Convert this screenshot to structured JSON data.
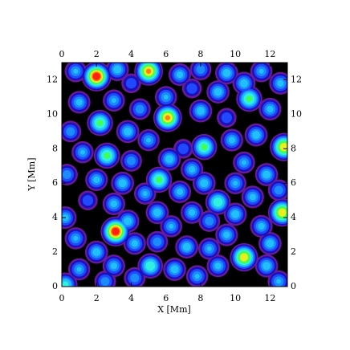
{
  "chart_data": {
    "type": "heatmap",
    "xlabel": "X [Mm]",
    "ylabel": "Y [Mm]",
    "xlim": [
      0,
      13
    ],
    "ylim": [
      0,
      13
    ],
    "xticks": [
      0,
      2,
      4,
      6,
      8,
      10,
      12
    ],
    "yticks": [
      0,
      2,
      4,
      6,
      8,
      10,
      12
    ],
    "x": [
      0.8,
      3.2,
      4,
      6.8,
      8,
      9.5,
      11.5,
      12.6,
      7.5,
      9,
      3,
      1,
      4.5,
      8,
      9.5,
      12,
      0.5,
      3.8,
      5,
      7,
      9.8,
      11.2,
      1.2,
      4,
      6.2,
      7.5,
      10.5,
      11.8,
      0.3,
      2,
      3.5,
      4.8,
      6.8,
      8.2,
      10,
      12.5,
      1.5,
      3,
      5.5,
      6.3,
      7.5,
      8.5,
      10,
      11.5,
      0.8,
      2,
      4.2,
      5.5,
      7.2,
      8.5,
      9.5,
      12,
      1,
      3,
      4.2,
      6.5,
      7.8,
      9,
      11.8,
      12.5,
      2.5,
      0.2,
      6,
      10.5,
      11,
      3.8,
      2,
      5,
      10.8,
      2.2,
      6.1,
      12.8,
      2.6,
      8.2,
      5.6,
      9,
      12.7,
      3.1,
      10.5,
      5.1,
      0.2
    ],
    "y": [
      12.5,
      12.6,
      11.8,
      12.3,
      12.6,
      12.4,
      12.5,
      11.8,
      11.5,
      11.3,
      10.8,
      10.7,
      10.3,
      10.2,
      9.8,
      10.3,
      9,
      9,
      8.5,
      8,
      8.5,
      8.8,
      7.8,
      7.3,
      7.4,
      6.8,
      7.2,
      6.5,
      6.5,
      6.2,
      6,
      5.4,
      5.5,
      6,
      6,
      5.6,
      5,
      4.8,
      4.3,
      3.5,
      4.3,
      3.8,
      4.2,
      3.5,
      2.8,
      2,
      2.5,
      2.6,
      2.3,
      2.2,
      3,
      2.5,
      1,
      1.2,
      0.5,
      1,
      0.6,
      1.2,
      1.2,
      0.3,
      0.3,
      4,
      11,
      11.8,
      5.2,
      3.8,
      12.2,
      12.5,
      10.9,
      9.5,
      9.8,
      8.1,
      7.6,
      8.1,
      6.2,
      4.9,
      4.3,
      3.2,
      1.7,
      1.2,
      0.1
    ],
    "values": [
      0.38,
      0.42,
      0.3,
      0.4,
      0.36,
      0.42,
      0.38,
      0.4,
      0.3,
      0.42,
      0.38,
      0.4,
      0.36,
      0.42,
      0.3,
      0.4,
      0.36,
      0.42,
      0.38,
      0.3,
      0.4,
      0.42,
      0.38,
      0.36,
      0.42,
      0.4,
      0.38,
      0.42,
      0.36,
      0.4,
      0.42,
      0.38,
      0.4,
      0.42,
      0.38,
      0.36,
      0.3,
      0.4,
      0.42,
      0.38,
      0.4,
      0.36,
      0.42,
      0.4,
      0.38,
      0.42,
      0.4,
      0.36,
      0.42,
      0.38,
      0.4,
      0.42,
      0.38,
      0.4,
      0.36,
      0.42,
      0.38,
      0.4,
      0.42,
      0.38,
      0.36,
      0.4,
      0.38,
      0.42,
      0.4,
      0.42,
      1.0,
      0.85,
      0.6,
      0.6,
      0.85,
      0.8,
      0.6,
      0.6,
      0.6,
      0.55,
      0.8,
      1.0,
      0.8,
      0.55,
      0.5
    ]
  }
}
